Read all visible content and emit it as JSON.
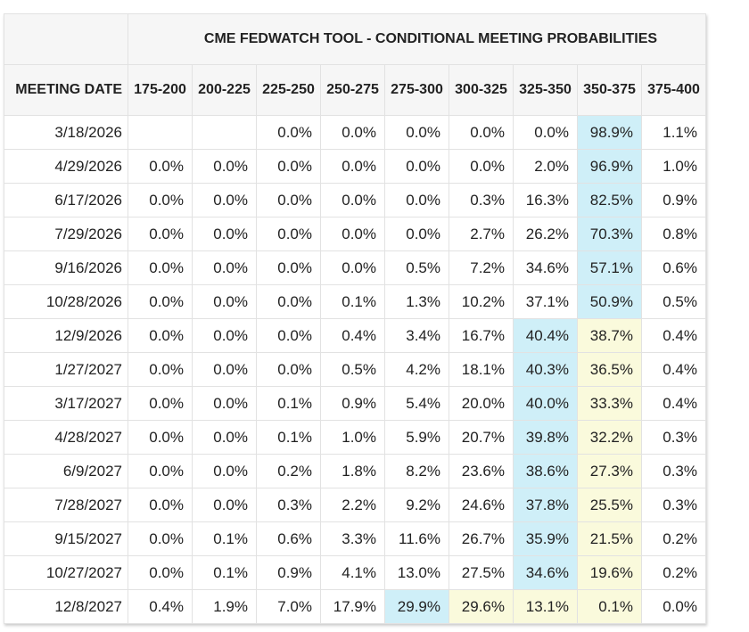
{
  "chart_data": {
    "type": "table",
    "title": "CME FEDWATCH TOOL - CONDITIONAL MEETING PROBABILITIES",
    "row_header": "MEETING DATE",
    "columns": [
      "175-200",
      "200-225",
      "225-250",
      "250-275",
      "275-300",
      "300-325",
      "325-350",
      "350-375",
      "375-400"
    ],
    "colors": {
      "b": "#cfeff8",
      "y": "#fafadc"
    },
    "rows": [
      {
        "date": "3/18/2026",
        "values": [
          "",
          "",
          "0.0%",
          "0.0%",
          "0.0%",
          "0.0%",
          "0.0%",
          "98.9%",
          "1.1%"
        ],
        "highlight": [
          "",
          "",
          "",
          "",
          "",
          "",
          "",
          "b",
          ""
        ]
      },
      {
        "date": "4/29/2026",
        "values": [
          "0.0%",
          "0.0%",
          "0.0%",
          "0.0%",
          "0.0%",
          "0.0%",
          "2.0%",
          "96.9%",
          "1.0%"
        ],
        "highlight": [
          "",
          "",
          "",
          "",
          "",
          "",
          "",
          "b",
          ""
        ]
      },
      {
        "date": "6/17/2026",
        "values": [
          "0.0%",
          "0.0%",
          "0.0%",
          "0.0%",
          "0.0%",
          "0.3%",
          "16.3%",
          "82.5%",
          "0.9%"
        ],
        "highlight": [
          "",
          "",
          "",
          "",
          "",
          "",
          "",
          "b",
          ""
        ]
      },
      {
        "date": "7/29/2026",
        "values": [
          "0.0%",
          "0.0%",
          "0.0%",
          "0.0%",
          "0.0%",
          "2.7%",
          "26.2%",
          "70.3%",
          "0.8%"
        ],
        "highlight": [
          "",
          "",
          "",
          "",
          "",
          "",
          "",
          "b",
          ""
        ]
      },
      {
        "date": "9/16/2026",
        "values": [
          "0.0%",
          "0.0%",
          "0.0%",
          "0.0%",
          "0.5%",
          "7.2%",
          "34.6%",
          "57.1%",
          "0.6%"
        ],
        "highlight": [
          "",
          "",
          "",
          "",
          "",
          "",
          "",
          "b",
          ""
        ]
      },
      {
        "date": "10/28/2026",
        "values": [
          "0.0%",
          "0.0%",
          "0.0%",
          "0.1%",
          "1.3%",
          "10.2%",
          "37.1%",
          "50.9%",
          "0.5%"
        ],
        "highlight": [
          "",
          "",
          "",
          "",
          "",
          "",
          "",
          "b",
          ""
        ]
      },
      {
        "date": "12/9/2026",
        "values": [
          "0.0%",
          "0.0%",
          "0.0%",
          "0.4%",
          "3.4%",
          "16.7%",
          "40.4%",
          "38.7%",
          "0.4%"
        ],
        "highlight": [
          "",
          "",
          "",
          "",
          "",
          "",
          "b",
          "y",
          ""
        ]
      },
      {
        "date": "1/27/2027",
        "values": [
          "0.0%",
          "0.0%",
          "0.0%",
          "0.5%",
          "4.2%",
          "18.1%",
          "40.3%",
          "36.5%",
          "0.4%"
        ],
        "highlight": [
          "",
          "",
          "",
          "",
          "",
          "",
          "b",
          "y",
          ""
        ]
      },
      {
        "date": "3/17/2027",
        "values": [
          "0.0%",
          "0.0%",
          "0.1%",
          "0.9%",
          "5.4%",
          "20.0%",
          "40.0%",
          "33.3%",
          "0.4%"
        ],
        "highlight": [
          "",
          "",
          "",
          "",
          "",
          "",
          "b",
          "y",
          ""
        ]
      },
      {
        "date": "4/28/2027",
        "values": [
          "0.0%",
          "0.0%",
          "0.1%",
          "1.0%",
          "5.9%",
          "20.7%",
          "39.8%",
          "32.2%",
          "0.3%"
        ],
        "highlight": [
          "",
          "",
          "",
          "",
          "",
          "",
          "b",
          "y",
          ""
        ]
      },
      {
        "date": "6/9/2027",
        "values": [
          "0.0%",
          "0.0%",
          "0.2%",
          "1.8%",
          "8.2%",
          "23.6%",
          "38.6%",
          "27.3%",
          "0.3%"
        ],
        "highlight": [
          "",
          "",
          "",
          "",
          "",
          "",
          "b",
          "y",
          ""
        ]
      },
      {
        "date": "7/28/2027",
        "values": [
          "0.0%",
          "0.0%",
          "0.3%",
          "2.2%",
          "9.2%",
          "24.6%",
          "37.8%",
          "25.5%",
          "0.3%"
        ],
        "highlight": [
          "",
          "",
          "",
          "",
          "",
          "",
          "b",
          "y",
          ""
        ]
      },
      {
        "date": "9/15/2027",
        "values": [
          "0.0%",
          "0.1%",
          "0.6%",
          "3.3%",
          "11.6%",
          "26.7%",
          "35.9%",
          "21.5%",
          "0.2%"
        ],
        "highlight": [
          "",
          "",
          "",
          "",
          "",
          "",
          "b",
          "y",
          ""
        ]
      },
      {
        "date": "10/27/2027",
        "values": [
          "0.0%",
          "0.1%",
          "0.9%",
          "4.1%",
          "13.0%",
          "27.5%",
          "34.6%",
          "19.6%",
          "0.2%"
        ],
        "highlight": [
          "",
          "",
          "",
          "",
          "",
          "",
          "b",
          "y",
          ""
        ]
      },
      {
        "date": "12/8/2027",
        "values": [
          "0.4%",
          "1.9%",
          "7.0%",
          "17.9%",
          "29.9%",
          "29.6%",
          "13.1%",
          "0.1%",
          "0.0%"
        ],
        "highlight": [
          "",
          "",
          "",
          "",
          "b",
          "y",
          "y",
          "y",
          ""
        ]
      }
    ]
  }
}
